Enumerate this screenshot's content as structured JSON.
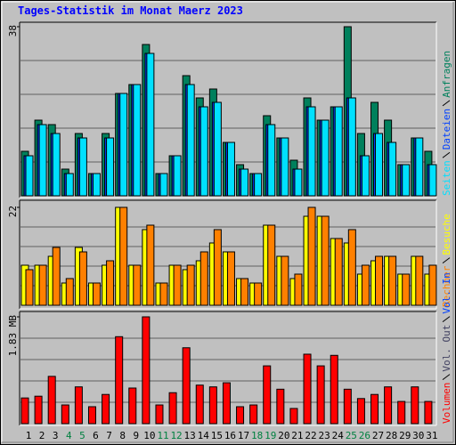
{
  "title": "Tages-Statistik im Monat Maerz 2023",
  "categories": [
    "1",
    "2",
    "3",
    "4",
    "5",
    "6",
    "7",
    "8",
    "9",
    "10",
    "11",
    "12",
    "13",
    "14",
    "15",
    "16",
    "17",
    "18",
    "19",
    "20",
    "21",
    "22",
    "23",
    "24",
    "25",
    "26",
    "27",
    "28",
    "29",
    "30",
    "31"
  ],
  "category_colors": [
    "#000000",
    "#000000",
    "#000000",
    "#008040",
    "#008040",
    "#000000",
    "#000000",
    "#000000",
    "#000000",
    "#000000",
    "#008040",
    "#008040",
    "#000000",
    "#000000",
    "#000000",
    "#000000",
    "#000000",
    "#008040",
    "#008040",
    "#000000",
    "#000000",
    "#000000",
    "#000000",
    "#000000",
    "#008040",
    "#008040",
    "#000000",
    "#000000",
    "#000000",
    "#000000",
    "#000000"
  ],
  "chart_data": [
    {
      "type": "bar",
      "ylim": [
        0,
        38
      ],
      "yticks": [
        38
      ],
      "series": [
        {
          "name": "Anfragen",
          "color": "#00805C",
          "values": [
            10,
            17,
            16,
            6,
            14,
            5,
            14,
            23,
            25,
            34,
            5,
            9,
            27,
            22,
            24,
            12,
            7,
            5,
            18,
            13,
            8,
            22,
            17,
            20,
            38,
            14,
            21,
            17,
            7,
            13,
            10
          ]
        },
        {
          "name": "Dateien",
          "color": "#0040FF",
          "values": [
            9,
            16,
            14,
            5,
            13,
            5,
            13,
            23,
            25,
            32,
            5,
            9,
            25,
            20,
            21,
            12,
            6,
            5,
            16,
            13,
            6,
            20,
            17,
            20,
            22,
            9,
            14,
            12,
            7,
            13,
            7
          ]
        },
        {
          "name": "Seiten",
          "color": "#00E0FF",
          "values": [
            9,
            16,
            14,
            5,
            13,
            5,
            13,
            23,
            25,
            32,
            5,
            9,
            25,
            20,
            21,
            12,
            6,
            5,
            16,
            13,
            6,
            20,
            17,
            20,
            22,
            9,
            14,
            12,
            7,
            13,
            7
          ]
        }
      ]
    },
    {
      "type": "bar",
      "ylim": [
        0,
        22
      ],
      "yticks": [
        22
      ],
      "series": [
        {
          "name": "Besuche",
          "color": "#FFFF00",
          "values": [
            9,
            9,
            11,
            5,
            13,
            5,
            9,
            22,
            9,
            17,
            5,
            9,
            8,
            10,
            14,
            12,
            6,
            5,
            18,
            11,
            6,
            20,
            20,
            15,
            14,
            7,
            10,
            11,
            7,
            11,
            7
          ]
        },
        {
          "name": "Rechner",
          "color": "#FF8000",
          "values": [
            8,
            9,
            13,
            6,
            12,
            5,
            10,
            22,
            9,
            18,
            5,
            9,
            9,
            12,
            17,
            12,
            6,
            5,
            18,
            11,
            7,
            22,
            20,
            15,
            17,
            9,
            11,
            11,
            7,
            11,
            9
          ]
        }
      ]
    },
    {
      "type": "bar",
      "ylim": [
        0,
        1.83
      ],
      "yticks": [
        {
          "value": 1.83,
          "label": "1.83 MB"
        }
      ],
      "series": [
        {
          "name": "Volumen",
          "color": "#FF0000",
          "values": [
            0.44,
            0.47,
            0.81,
            0.32,
            0.63,
            0.29,
            0.5,
            1.49,
            0.61,
            1.83,
            0.32,
            0.53,
            1.3,
            0.66,
            0.63,
            0.7,
            0.29,
            0.32,
            0.99,
            0.59,
            0.26,
            1.19,
            0.99,
            1.17,
            0.59,
            0.43,
            0.5,
            0.63,
            0.38,
            0.63,
            0.38
          ]
        }
      ],
      "extra_legend": [
        {
          "name": "Vol. In",
          "color": "#0040FF"
        },
        {
          "name": "Vol. Out",
          "color": "#404060"
        }
      ]
    }
  ]
}
